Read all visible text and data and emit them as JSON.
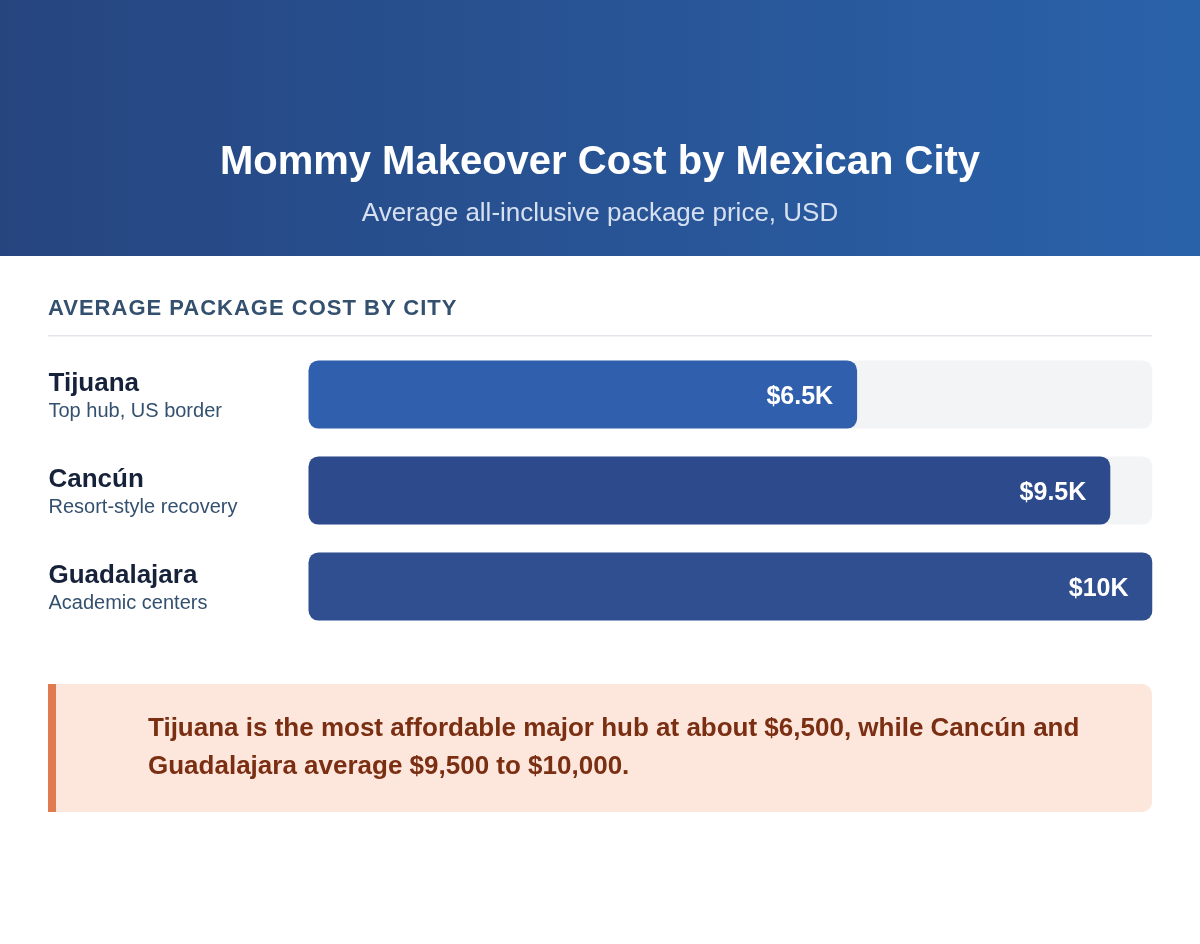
{
  "chart_data": {
    "type": "bar",
    "orientation": "horizontal",
    "title": "Mommy Makeover Cost by Mexican City",
    "subtitle": "Average all-inclusive package price, USD",
    "categories": [
      "Tijuana",
      "Cancún",
      "Guadalajara"
    ],
    "values": [
      6.5,
      9.5,
      10
    ],
    "colors": [
      "#3060ad",
      "#2d4b8c",
      "#2f4f90"
    ],
    "value_labels": [
      "$6.5K",
      "$9.5K",
      "$10K"
    ],
    "xlim": [
      0,
      10
    ],
    "annotations": [
      "AVERAGE PACKAGE COST BY CITY",
      "Top hub, US border",
      "Resort-style recovery",
      "Academic centers",
      "Tijuana is the most affordable major hub at about $6,500, while Cancún and Guadalajara average $9,500 to $10,000."
    ],
    "grid": false
  }
}
